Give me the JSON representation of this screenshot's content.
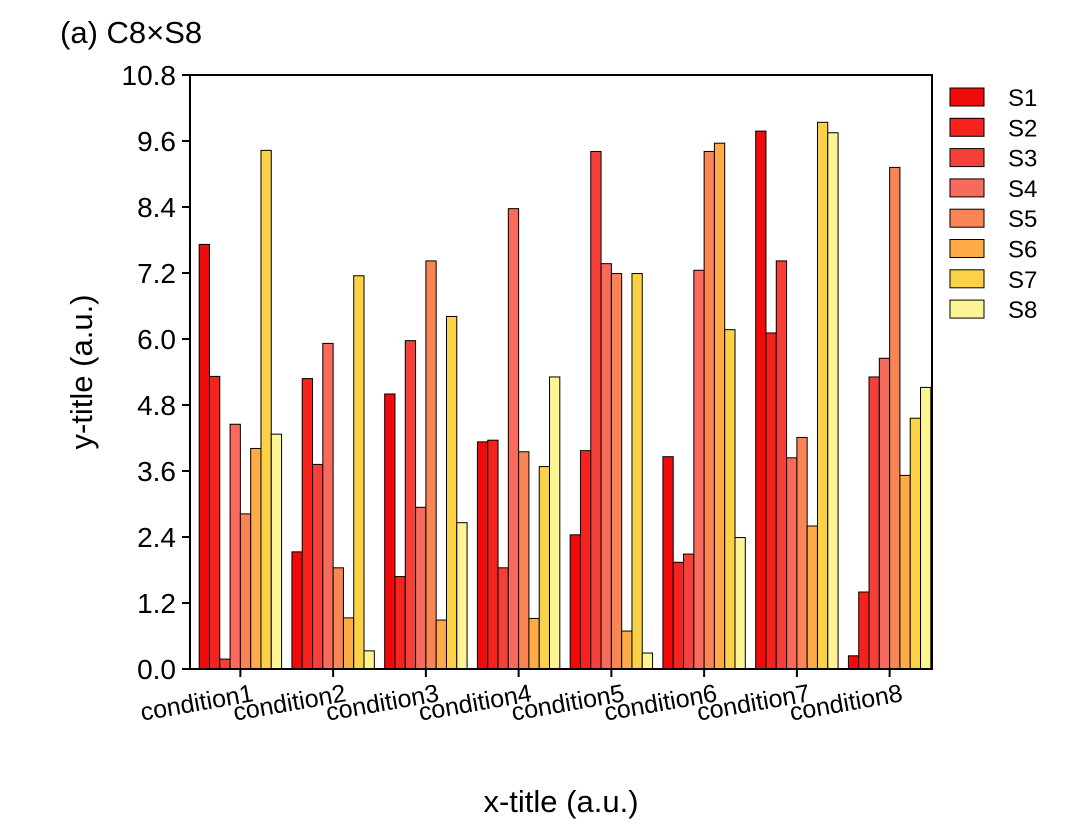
{
  "chart_data": {
    "type": "bar",
    "title": "(a) C8×S8",
    "xlabel": "x-title (a.u.)",
    "ylabel": "y-title (a.u.)",
    "ylim": [
      0,
      10.8
    ],
    "yticks": [
      0.0,
      1.2,
      2.4,
      3.6,
      4.8,
      6.0,
      7.2,
      8.4,
      9.6,
      10.8
    ],
    "ytick_labels": [
      "0.0",
      "1.2",
      "2.4",
      "3.6",
      "4.8",
      "6.0",
      "7.2",
      "8.4",
      "9.6",
      "10.8"
    ],
    "categories": [
      "condition1",
      "condition2",
      "condition3",
      "condition4",
      "condition5",
      "condition6",
      "condition7",
      "condition8"
    ],
    "legend_position": "right",
    "grid": false,
    "series": [
      {
        "name": "S1",
        "color": "#f00a0a",
        "values": [
          7.72,
          2.13,
          5.0,
          4.13,
          2.44,
          3.86,
          9.78,
          0.24
        ]
      },
      {
        "name": "S2",
        "color": "#f5221e",
        "values": [
          5.32,
          5.28,
          1.68,
          4.16,
          3.97,
          1.94,
          6.11,
          1.4
        ]
      },
      {
        "name": "S3",
        "color": "#f5403a",
        "values": [
          0.18,
          3.72,
          5.97,
          1.84,
          9.41,
          2.09,
          7.42,
          5.31
        ]
      },
      {
        "name": "S4",
        "color": "#f76a5c",
        "values": [
          4.45,
          5.92,
          2.94,
          8.37,
          7.37,
          7.25,
          3.84,
          5.65
        ]
      },
      {
        "name": "S5",
        "color": "#f98554",
        "values": [
          2.82,
          1.84,
          7.42,
          3.95,
          7.19,
          9.41,
          4.21,
          9.12
        ]
      },
      {
        "name": "S6",
        "color": "#fcab46",
        "values": [
          4.01,
          0.93,
          0.89,
          0.92,
          0.69,
          9.56,
          2.6,
          3.52
        ]
      },
      {
        "name": "S7",
        "color": "#fbd148",
        "values": [
          9.43,
          7.15,
          6.41,
          3.68,
          7.19,
          6.17,
          9.94,
          4.56
        ]
      },
      {
        "name": "S8",
        "color": "#fdf494",
        "values": [
          4.27,
          0.33,
          2.66,
          5.31,
          0.29,
          2.39,
          9.75,
          5.12
        ]
      }
    ]
  }
}
